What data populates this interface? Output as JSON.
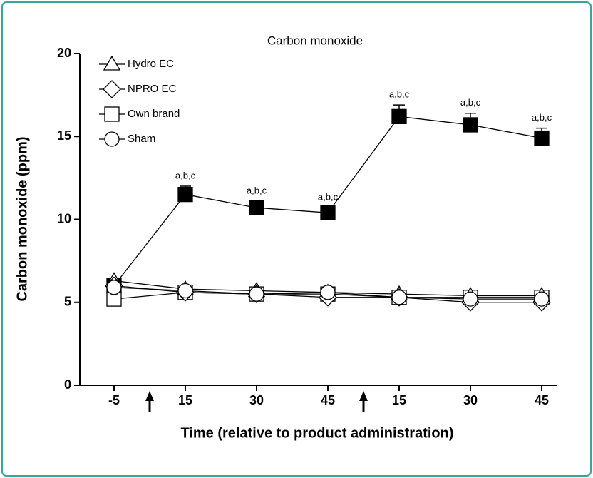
{
  "chart_data": {
    "type": "line",
    "title": "Carbon monoxide",
    "x_label": "Time (relative to product administration)",
    "y_label": "Carbon monoxide (ppm)",
    "categories": [
      "-5",
      "15",
      "30",
      "45",
      "15",
      "30",
      "45"
    ],
    "ylim": [
      0,
      20
    ],
    "yticks": [
      0,
      5,
      10,
      15,
      20
    ],
    "series": [
      {
        "marker": "square",
        "color": "#000000",
        "fill": "#000000",
        "values": [
          6.0,
          11.5,
          10.7,
          10.4,
          16.2,
          15.7,
          14.9
        ],
        "errors": [
          0.2,
          0.5,
          0.4,
          0.3,
          0.7,
          0.7,
          0.6
        ],
        "labels": [
          null,
          "a,b,c",
          "a,b,c",
          "a,b,c",
          "a,b,c",
          "a,b,c",
          "a,b,c"
        ]
      },
      {
        "name": "Own brand",
        "marker": "square",
        "color": "#000000",
        "fill": "#ffffff",
        "values": [
          5.2,
          5.6,
          5.5,
          5.5,
          5.3,
          5.3,
          5.3
        ]
      },
      {
        "name": "Hydro EC",
        "marker": "triangle",
        "color": "#000000",
        "fill": "#ffffff",
        "values": [
          6.3,
          5.8,
          5.7,
          5.6,
          5.5,
          5.4,
          5.4
        ]
      },
      {
        "name": "NPRO EC",
        "marker": "diamond",
        "color": "#000000",
        "fill": "#ffffff",
        "values": [
          6.0,
          5.6,
          5.5,
          5.3,
          5.3,
          5.0,
          5.0
        ]
      },
      {
        "name": "Sham",
        "marker": "circle",
        "color": "#000000",
        "fill": "#ffffff",
        "values": [
          5.9,
          5.7,
          5.5,
          5.6,
          5.3,
          5.2,
          5.2
        ]
      }
    ],
    "legend_order": [
      2,
      3,
      1,
      4
    ]
  }
}
